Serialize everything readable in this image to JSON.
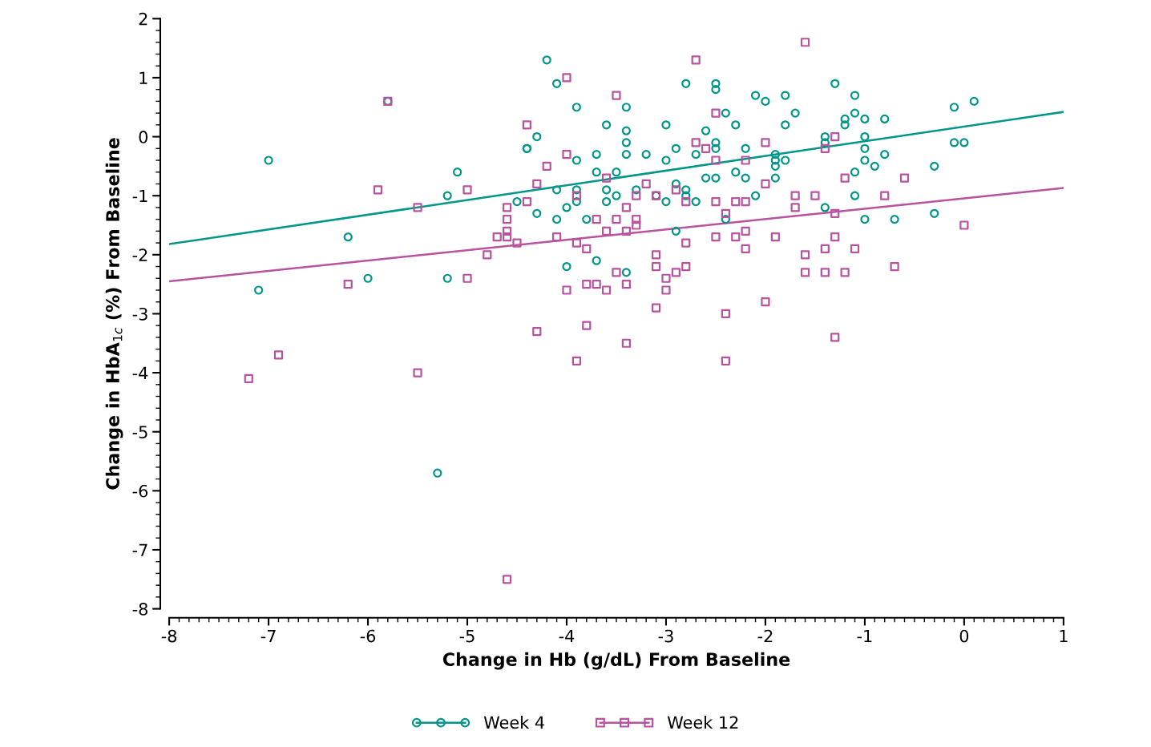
{
  "chart_data": {
    "type": "scatter",
    "xlabel": "Change in Hb (g/dL) From Baseline",
    "ylabel": "Change in HbA$_{1c}$ (%) From Baseline",
    "xlim": [
      -8,
      1
    ],
    "xticks": [
      -8,
      -7,
      -6,
      -5,
      -4,
      -3,
      -2,
      -1,
      0,
      1
    ],
    "ylim": [
      -8,
      2
    ],
    "yticks": [
      -8,
      -7,
      -6,
      -5,
      -4,
      -3,
      -2,
      -1,
      0,
      1,
      2
    ],
    "legend": "bottom",
    "line_style": "solid",
    "series": [
      {
        "name": "Week 4",
        "marker": "circle",
        "color": "#00968a",
        "x": [
          -7.0,
          -7.1,
          -6.2,
          -6.0,
          -5.8,
          -5.3,
          -5.2,
          -5.2,
          -5.1,
          -4.5,
          -4.4,
          -4.4,
          -4.3,
          -4.3,
          -4.2,
          -4.1,
          -4.1,
          -4.1,
          -4.0,
          -4.0,
          -3.9,
          -3.9,
          -3.9,
          -3.9,
          -3.8,
          -3.7,
          -3.7,
          -3.7,
          -3.6,
          -3.6,
          -3.6,
          -3.5,
          -3.5,
          -3.4,
          -3.4,
          -3.4,
          -3.4,
          -3.4,
          -3.3,
          -3.2,
          -3.1,
          -3.0,
          -3.0,
          -3.0,
          -2.9,
          -2.9,
          -2.9,
          -2.8,
          -2.8,
          -2.8,
          -2.7,
          -2.7,
          -2.6,
          -2.6,
          -2.5,
          -2.5,
          -2.5,
          -2.5,
          -2.5,
          -2.4,
          -2.4,
          -2.3,
          -2.3,
          -2.2,
          -2.2,
          -2.1,
          -2.1,
          -2.0,
          -1.9,
          -1.9,
          -1.9,
          -1.9,
          -1.8,
          -1.8,
          -1.8,
          -1.7,
          -1.4,
          -1.4,
          -1.4,
          -1.3,
          -1.2,
          -1.2,
          -1.1,
          -1.1,
          -1.1,
          -1.1,
          -1.0,
          -1.0,
          -1.0,
          -1.0,
          -1.0,
          -0.9,
          -0.8,
          -0.8,
          -0.7,
          -0.3,
          -0.3,
          -0.1,
          -0.1,
          0.0,
          0.1
        ],
        "values": [
          -0.4,
          -2.6,
          -1.7,
          -2.4,
          0.6,
          -5.7,
          -1.0,
          -2.4,
          -0.6,
          -1.1,
          -0.2,
          -0.2,
          0.0,
          -1.3,
          1.3,
          0.9,
          -0.9,
          -1.4,
          -1.2,
          -2.2,
          0.5,
          -0.4,
          -0.9,
          -1.1,
          -1.4,
          -0.3,
          -0.6,
          -2.1,
          0.2,
          -0.9,
          -1.1,
          -0.6,
          -1.0,
          0.5,
          0.1,
          -0.1,
          -0.3,
          -2.3,
          -0.9,
          -0.3,
          -1.0,
          0.2,
          -0.4,
          -1.1,
          -0.2,
          -0.8,
          -1.6,
          0.9,
          -0.9,
          -1.0,
          -0.3,
          -1.1,
          0.1,
          -0.7,
          0.9,
          0.8,
          -0.1,
          -0.2,
          -0.7,
          0.4,
          -1.4,
          0.2,
          -0.6,
          -0.2,
          -0.7,
          0.7,
          -1.0,
          0.6,
          -0.3,
          -0.4,
          -0.5,
          -0.7,
          0.7,
          0.2,
          -0.4,
          0.4,
          0.0,
          -0.1,
          -1.2,
          0.9,
          0.3,
          0.2,
          0.7,
          0.4,
          -0.6,
          -1.0,
          0.3,
          0.0,
          -0.2,
          -0.4,
          -1.4,
          -0.5,
          0.3,
          -0.3,
          -1.4,
          -0.5,
          -1.3,
          0.5,
          -0.1,
          -0.1,
          0.6
        ]
      },
      {
        "name": "Week 12",
        "marker": "square",
        "color": "#b9529f",
        "x": [
          -7.2,
          -6.9,
          -6.2,
          -5.9,
          -5.8,
          -5.5,
          -5.5,
          -5.0,
          -5.0,
          -4.8,
          -4.7,
          -4.6,
          -4.6,
          -4.6,
          -4.6,
          -4.6,
          -4.5,
          -4.4,
          -4.4,
          -4.3,
          -4.3,
          -4.2,
          -4.1,
          -4.0,
          -4.0,
          -4.0,
          -3.9,
          -3.9,
          -3.9,
          -3.8,
          -3.8,
          -3.8,
          -3.7,
          -3.7,
          -3.6,
          -3.6,
          -3.6,
          -3.5,
          -3.5,
          -3.5,
          -3.4,
          -3.4,
          -3.4,
          -3.4,
          -3.3,
          -3.3,
          -3.3,
          -3.2,
          -3.1,
          -3.1,
          -3.1,
          -3.1,
          -3.0,
          -3.0,
          -2.9,
          -2.9,
          -2.8,
          -2.8,
          -2.8,
          -2.7,
          -2.7,
          -2.6,
          -2.5,
          -2.5,
          -2.5,
          -2.5,
          -2.4,
          -2.4,
          -2.4,
          -2.3,
          -2.3,
          -2.2,
          -2.2,
          -2.2,
          -2.2,
          -2.0,
          -2.0,
          -2.0,
          -1.9,
          -1.7,
          -1.7,
          -1.6,
          -1.6,
          -1.6,
          -1.5,
          -1.4,
          -1.4,
          -1.4,
          -1.3,
          -1.3,
          -1.3,
          -1.3,
          -1.2,
          -1.2,
          -1.1,
          -0.8,
          -0.7,
          -0.6,
          0.0
        ],
        "values": [
          -4.1,
          -3.7,
          -2.5,
          -0.9,
          0.6,
          -1.2,
          -4.0,
          -0.9,
          -2.4,
          -2.0,
          -1.7,
          -1.2,
          -1.4,
          -1.6,
          -1.7,
          -7.5,
          -1.8,
          0.2,
          -1.1,
          -0.8,
          -3.3,
          -0.5,
          -1.7,
          1.0,
          -0.3,
          -2.6,
          -1.0,
          -1.8,
          -3.8,
          -1.9,
          -2.5,
          -3.2,
          -1.4,
          -2.5,
          -0.7,
          -1.6,
          -2.6,
          0.7,
          -1.4,
          -2.3,
          -1.2,
          -1.6,
          -2.5,
          -3.5,
          -1.0,
          -1.4,
          -1.5,
          -0.8,
          -1.0,
          -2.0,
          -2.2,
          -2.9,
          -2.4,
          -2.6,
          -0.9,
          -2.3,
          -1.1,
          -1.8,
          -2.2,
          1.3,
          -0.1,
          -0.2,
          0.4,
          -0.4,
          -1.1,
          -1.7,
          -1.3,
          -3.0,
          -3.8,
          -1.1,
          -1.7,
          -0.4,
          -1.1,
          -1.6,
          -1.9,
          -0.1,
          -0.8,
          -2.8,
          -1.7,
          -1.0,
          -1.2,
          1.6,
          -2.0,
          -2.3,
          -1.0,
          -0.2,
          -1.9,
          -2.3,
          0.0,
          -1.3,
          -1.7,
          -3.4,
          -0.7,
          -2.3,
          -1.9,
          -1.0,
          -2.2,
          -0.7,
          -1.5
        ]
      },
      {
        "type": "line",
        "color": "#00968a",
        "x": [
          -8,
          1
        ],
        "values": [
          -1.82,
          0.42
        ]
      },
      {
        "type": "line",
        "color": "#b9529f",
        "x": [
          -8,
          1
        ],
        "values": [
          -2.45,
          -0.87
        ]
      }
    ]
  }
}
